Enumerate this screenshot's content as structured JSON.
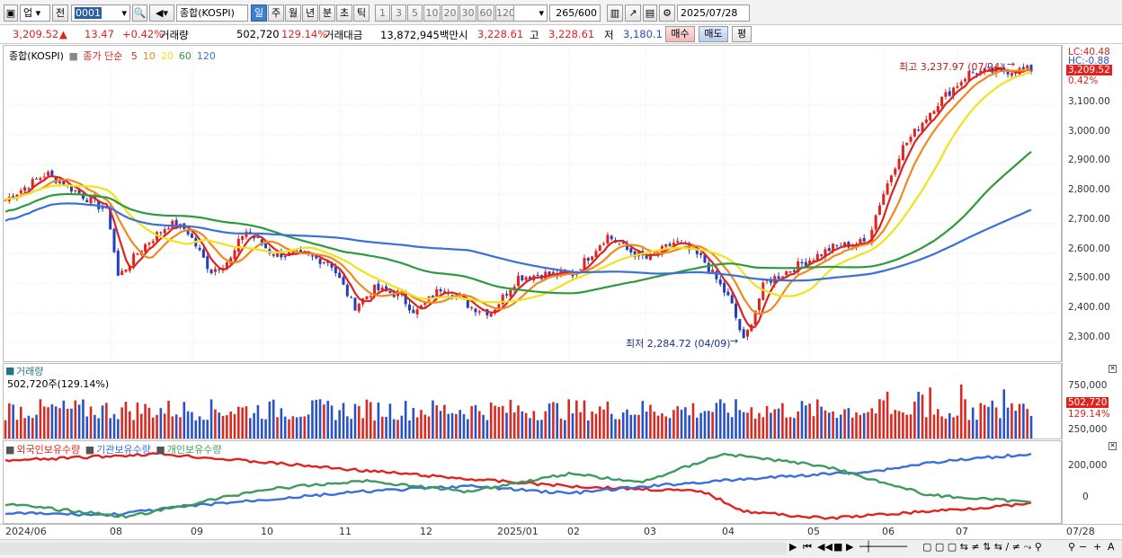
{
  "toolbar": {
    "market": "업",
    "prev": "전",
    "code": "0001",
    "name": "종합(KOSPI)",
    "periods": [
      "일",
      "주",
      "월",
      "년",
      "분",
      "초",
      "틱"
    ],
    "active_period": "일",
    "intervals": [
      "1",
      "3",
      "5",
      "10",
      "20",
      "30",
      "60",
      "120"
    ],
    "count": "265",
    "max_count": "/600",
    "date": "2025/07/28"
  },
  "quote": {
    "price": "3,209.52",
    "change": "13.47",
    "change_pct": "+0.42%",
    "volume_label": "거래량",
    "volume": "502,720",
    "volume_pct": "129.14%",
    "amount_label": "거래대금",
    "amount": "13,872,945백만",
    "open_label": "시",
    "open": "3,228.61",
    "high_label": "고",
    "high": "3,228.61",
    "low_label": "저",
    "low": "3,180.1",
    "buy": "매수",
    "sell": "매도",
    "avg": "평"
  },
  "price_panel": {
    "title": "종합(KOSPI)",
    "ma_prefix": "종가 단순",
    "ma_periods": [
      "5",
      "10",
      "20",
      "60",
      "120"
    ],
    "ma_colors": [
      "#e0231f",
      "#f08a1c",
      "#f2e21a",
      "#2e9a3e",
      "#3a6fdc"
    ],
    "high_note": "최고 3,237.97 (07/24)",
    "low_note": "최저 2,284.72 (04/09)",
    "lc": "LC:40.48",
    "hc": "HC:-0.88",
    "last_price": "3,209.52",
    "last_pct": "0.42%",
    "yticks": [
      "3,100.00",
      "3,000.00",
      "2,900.00",
      "2,800.00",
      "2,700.00",
      "2,600.00",
      "2,500.00",
      "2,400.00",
      "2,300.00"
    ]
  },
  "volume_panel": {
    "title": "거래량",
    "subtitle": "502,720주(129.14%)",
    "ticks": [
      "750,000",
      "500,000",
      "250,000"
    ],
    "last": "502,720",
    "last_pct": "129.14%"
  },
  "holdings_panel": {
    "series": [
      "외국인보유수량",
      "기관보유수량",
      "개인보유수량"
    ],
    "series_colors": [
      "#e0231f",
      "#3a6fdc",
      "#3e9a5e"
    ],
    "ticks": [
      "200,000",
      "0"
    ]
  },
  "date_axis": {
    "labels": [
      "2024/06",
      "08",
      "09",
      "10",
      "11",
      "12",
      "2025/01",
      "02",
      "03",
      "04",
      "05",
      "06",
      "07"
    ],
    "right": "07/28"
  },
  "chart_data": {
    "type": "line",
    "title": "종합(KOSPI)",
    "series": [
      {
        "name": "종가 단순 5",
        "approx_points": [
          [
            "2024/06",
            2780
          ],
          [
            "2024/07",
            2860
          ],
          [
            "2024/08",
            2560
          ],
          [
            "2024/09",
            2600
          ],
          [
            "2024/10",
            2600
          ],
          [
            "2024/11",
            2420
          ],
          [
            "2024/12",
            2450
          ],
          [
            "2025/01",
            2520
          ],
          [
            "2025/02",
            2650
          ],
          [
            "2025/03",
            2600
          ],
          [
            "2025/04",
            2400
          ],
          [
            "2025/05",
            2600
          ],
          [
            "2025/06",
            2950
          ],
          [
            "2025/07",
            3200
          ]
        ]
      },
      {
        "name": "60",
        "approx_points": [
          [
            "2024/06",
            2700
          ],
          [
            "2024/08",
            2730
          ],
          [
            "2024/10",
            2650
          ],
          [
            "2024/12",
            2500
          ],
          [
            "2025/02",
            2520
          ],
          [
            "2025/04",
            2560
          ],
          [
            "2025/05",
            2530
          ],
          [
            "2025/06",
            2650
          ],
          [
            "2025/07",
            2900
          ]
        ]
      },
      {
        "name": "120",
        "approx_points": [
          [
            "2024/06",
            2650
          ],
          [
            "2024/08",
            2720
          ],
          [
            "2024/10",
            2700
          ],
          [
            "2024/12",
            2600
          ],
          [
            "2025/02",
            2560
          ],
          [
            "2025/04",
            2540
          ],
          [
            "2025/05",
            2520
          ],
          [
            "2025/06",
            2560
          ],
          [
            "2025/07",
            2720
          ]
        ]
      }
    ],
    "ylim": [
      2230,
      3300
    ],
    "annotations": [
      "최고 3,237.97 (07/24)",
      "최저 2,284.72 (04/09)"
    ]
  }
}
